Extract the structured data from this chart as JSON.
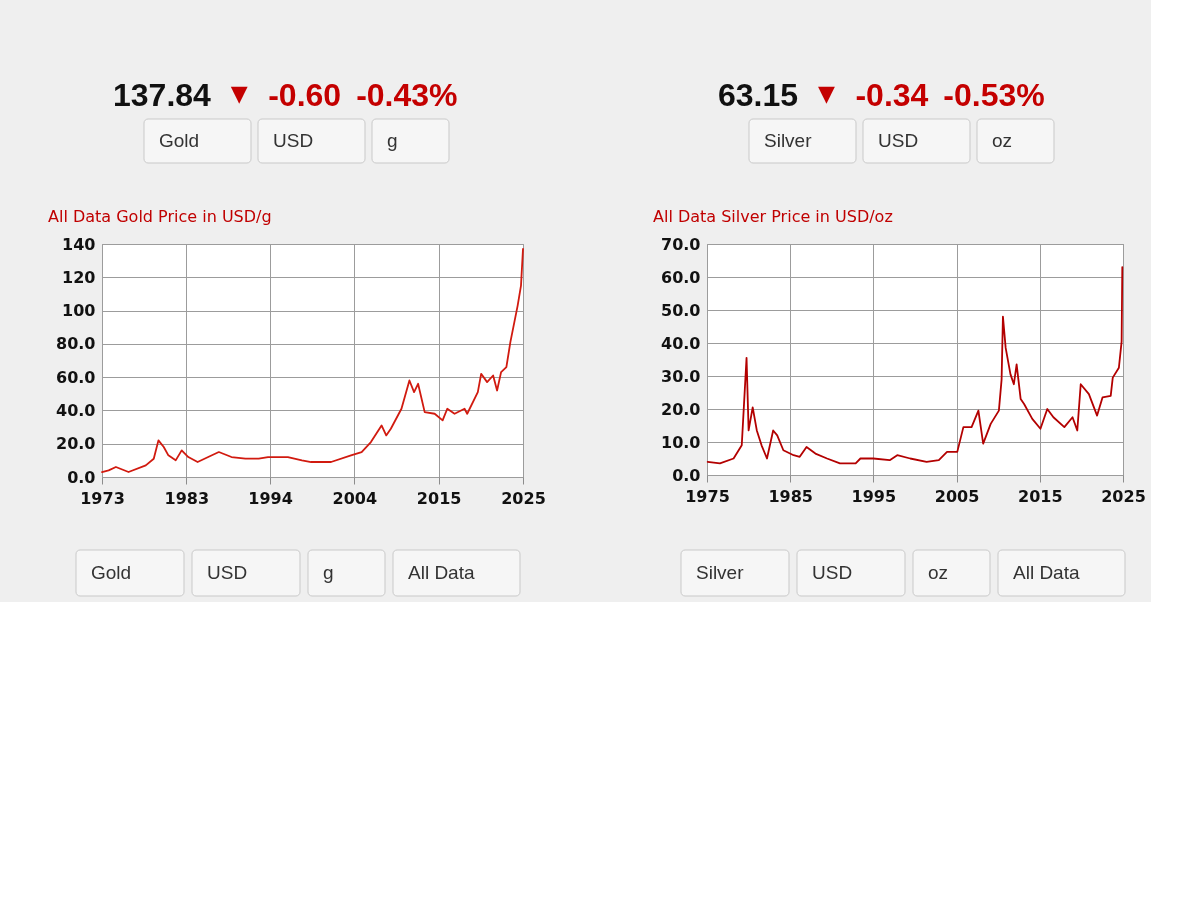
{
  "chart_data": [
    {
      "type": "line",
      "title": "All Data Gold Price in USD/g",
      "x": [
        "1973-01",
        "1973-11",
        "1974-10",
        "1976-05",
        "1978-07",
        "1979-07",
        "1980-02",
        "1980-10",
        "1981-05",
        "1982-04",
        "1983-01",
        "1983-11",
        "1985-01",
        "1986-05",
        "1987-09",
        "1989-04",
        "1991-01",
        "1992-09",
        "1993-11",
        "1996-05",
        "1998-02",
        "1999-04",
        "2001-10",
        "2004-04",
        "2005-08",
        "2006-10",
        "2008-02",
        "2008-09",
        "2009-04",
        "2010-08",
        "2011-08",
        "2012-03",
        "2012-09",
        "2013-07",
        "2014-10",
        "2015-10",
        "2016-05",
        "2017-04",
        "2018-07",
        "2018-11",
        "2020-03",
        "2020-08",
        "2021-05",
        "2022-02",
        "2022-08",
        "2023-02",
        "2023-10",
        "2024-04",
        "2025-03",
        "2025-08",
        "2025-11"
      ],
      "series": [
        {
          "color": "#d11a0f",
          "values": [
            3,
            4,
            6,
            3,
            7,
            11,
            22,
            18,
            13,
            10,
            16,
            12,
            9,
            12,
            15,
            12,
            11,
            11,
            12,
            12,
            10,
            9,
            9,
            13,
            15,
            21,
            31,
            25,
            29,
            41,
            58,
            51,
            56,
            39,
            38,
            34,
            41,
            38,
            41,
            38,
            51,
            62,
            57,
            61,
            52,
            63,
            66,
            81,
            103,
            115,
            137
          ]
        }
      ],
      "xlim": [
        "1973-01",
        "2025-11"
      ],
      "xticks": [
        {
          "value": "1973-01",
          "label": "1973"
        },
        {
          "value": "1983-08",
          "label": "1983"
        },
        {
          "value": "1994-02",
          "label": "1994"
        },
        {
          "value": "2004-09",
          "label": "2004"
        },
        {
          "value": "2015-04",
          "label": "2015"
        },
        {
          "value": "2025-11",
          "label": "2025"
        }
      ],
      "ylim": [
        0,
        140
      ],
      "yticks": [
        {
          "value": 0,
          "label": "0.0"
        },
        {
          "value": 20,
          "label": "20.0"
        },
        {
          "value": 40,
          "label": "40.0"
        },
        {
          "value": 60,
          "label": "60.0"
        },
        {
          "value": 80,
          "label": "80.0"
        },
        100,
        120,
        140
      ],
      "grid": true,
      "annotations": [
        "137.84",
        "▼",
        "-0.60",
        "-0.43%",
        "Gold",
        "USD",
        "g",
        "Gold",
        "USD",
        "g",
        "All Data"
      ]
    },
    {
      "type": "line",
      "title": "All Data Silver Price in USD/oz",
      "x": [
        "1975-02",
        "1976-08",
        "1978-04",
        "1979-04",
        "1979-11",
        "1980-02",
        "1980-08",
        "1981-02",
        "1981-09",
        "1982-05",
        "1983-02",
        "1983-08",
        "1984-05",
        "1985-08",
        "1986-05",
        "1987-03",
        "1988-04",
        "1989-09",
        "1991-04",
        "1993-03",
        "1993-10",
        "1995-05",
        "1997-05",
        "1998-04",
        "1999-11",
        "2001-11",
        "2003-05",
        "2004-05",
        "2005-08",
        "2006-05",
        "2007-05",
        "2008-03",
        "2008-10",
        "2009-09",
        "2010-09",
        "2011-01",
        "2011-03",
        "2011-07",
        "2012-02",
        "2012-07",
        "2012-11",
        "2013-05",
        "2013-10",
        "2014-10",
        "2015-10",
        "2016-08",
        "2017-05",
        "2018-09",
        "2019-09",
        "2020-04",
        "2020-09",
        "2021-09",
        "2022-09",
        "2023-05",
        "2024-05",
        "2024-08",
        "2025-05",
        "2025-09",
        "2025-10"
      ],
      "series": [
        {
          "color": "#b30000",
          "values": [
            4,
            3.5,
            5,
            9,
            35.5,
            13.5,
            20.5,
            13.5,
            9,
            5,
            13.5,
            12,
            7.5,
            6,
            5.5,
            8.5,
            6.5,
            5,
            3.5,
            3.5,
            5,
            5,
            4.5,
            6,
            5,
            4,
            4.5,
            7,
            7,
            14.5,
            14.5,
            19.5,
            9.5,
            15.5,
            19.5,
            29,
            48,
            38.5,
            30.5,
            27.5,
            33.5,
            23,
            21.5,
            17,
            14,
            20,
            17.5,
            14.5,
            17.5,
            13.5,
            27.5,
            24.5,
            18,
            23.5,
            24,
            29.5,
            32.5,
            40.5,
            63
          ]
        }
      ],
      "xlim": [
        "1975-01",
        "2025-11"
      ],
      "xticks": [
        {
          "value": "1975-01",
          "label": "1975"
        },
        {
          "value": "1985-03",
          "label": "1985"
        },
        {
          "value": "1995-05",
          "label": "1995"
        },
        {
          "value": "2005-07",
          "label": "2005"
        },
        {
          "value": "2015-09",
          "label": "2015"
        },
        {
          "value": "2025-11",
          "label": "2025"
        }
      ],
      "ylim": [
        0,
        70
      ],
      "yticks": [
        {
          "value": 0,
          "label": "0.0"
        },
        {
          "value": 10,
          "label": "10.0"
        },
        {
          "value": 20,
          "label": "20.0"
        },
        {
          "value": 30,
          "label": "30.0"
        },
        {
          "value": 40,
          "label": "40.0"
        },
        {
          "value": 50,
          "label": "50.0"
        },
        {
          "value": 60,
          "label": "60.0"
        },
        {
          "value": 70,
          "label": "70.0"
        }
      ],
      "grid": true,
      "annotations": [
        "63.15",
        "▼",
        "-0.34",
        "-0.53%",
        "Silver",
        "USD",
        "oz",
        "Silver",
        "USD",
        "oz",
        "All Data"
      ]
    }
  ]
}
